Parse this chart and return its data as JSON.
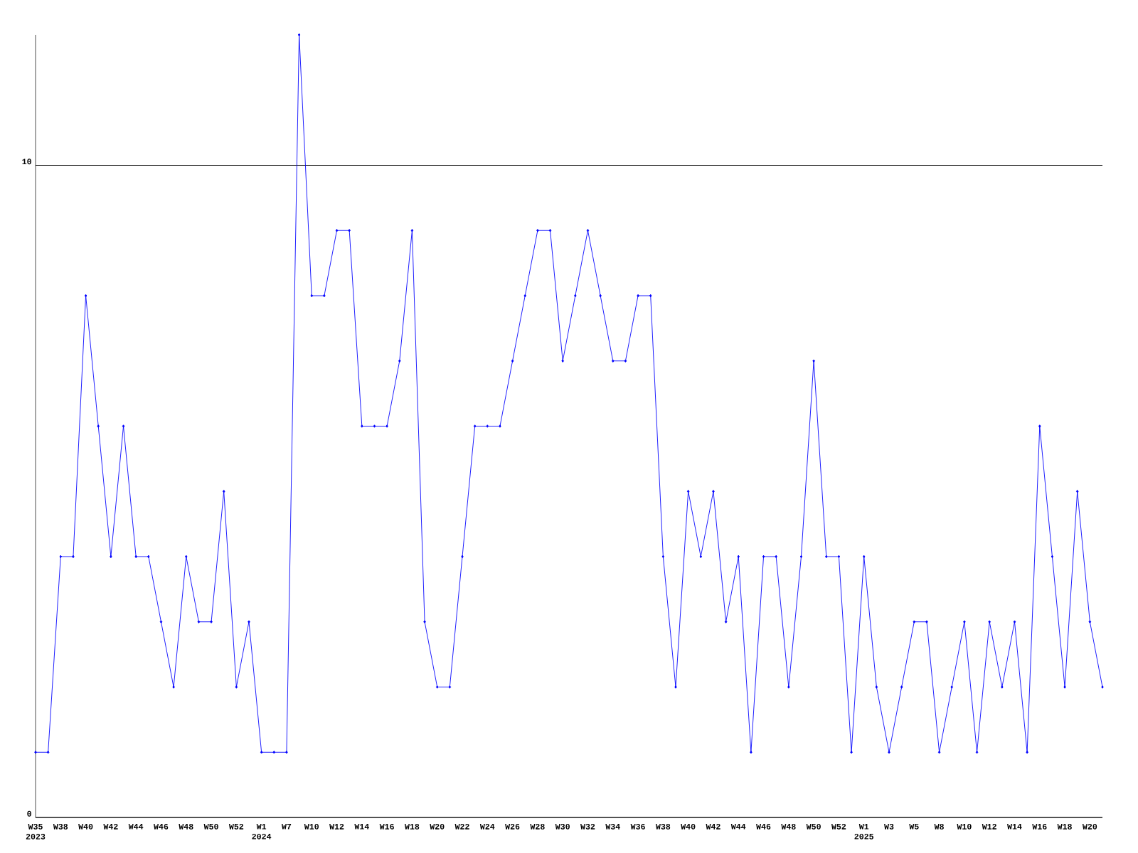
{
  "chart_data": {
    "type": "line",
    "categories": [
      "W35 2023",
      null,
      "W38",
      null,
      "W40",
      null,
      "W42",
      null,
      "W44",
      null,
      "W46",
      null,
      "W48",
      null,
      "W50",
      null,
      "W52",
      null,
      "W1 2024",
      null,
      "W7",
      null,
      "W10",
      null,
      "W12",
      null,
      "W14",
      null,
      "W16",
      null,
      "W18",
      null,
      "W20",
      null,
      "W22",
      null,
      "W24",
      null,
      "W26",
      null,
      "W28",
      null,
      "W30",
      null,
      "W32",
      null,
      "W34",
      null,
      "W36",
      null,
      "W38",
      null,
      "W40",
      null,
      "W42",
      null,
      "W44",
      null,
      "W46",
      null,
      "W48",
      null,
      "W50",
      null,
      "W52",
      null,
      "W1 2025",
      null,
      "W3",
      null,
      "W5",
      null,
      "W8",
      null,
      "W10",
      null,
      "W12",
      null,
      "W14",
      null,
      "W16",
      null,
      "W18",
      null,
      "W20",
      null
    ],
    "values": [
      1,
      1,
      4,
      4,
      8,
      6,
      4,
      6,
      4,
      4,
      3,
      2,
      4,
      3,
      3,
      5,
      2,
      3,
      1,
      1,
      1,
      12,
      8,
      8,
      9,
      9,
      6,
      6,
      6,
      7,
      9,
      3,
      2,
      2,
      4,
      6,
      6,
      6,
      7,
      8,
      9,
      9,
      7,
      8,
      9,
      8,
      7,
      7,
      8,
      8,
      4,
      2,
      5,
      4,
      5,
      3,
      4,
      1,
      4,
      4,
      2,
      4,
      7,
      4,
      4,
      1,
      4,
      2,
      1,
      2,
      3,
      3,
      1,
      2,
      3,
      1,
      3,
      2,
      3,
      1,
      6,
      4,
      2,
      5,
      3,
      2
    ],
    "color": "#0000ff",
    "marker": "diamond",
    "ylim": [
      0,
      12
    ],
    "yticks": [
      0,
      10
    ],
    "grid": "y"
  }
}
